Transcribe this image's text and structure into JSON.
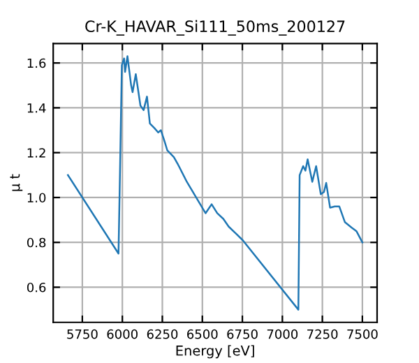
{
  "chart_data": {
    "type": "line",
    "title": "Cr-K_HAVAR_Si111_50ms_200127",
    "xlabel": "Energy [eV]",
    "ylabel": "μ t",
    "series": [
      {
        "color": "#1f77b4",
        "x": [
          5660,
          5976,
          5985,
          5997,
          6011,
          6017,
          6032,
          6055,
          6064,
          6084,
          6113,
          6133,
          6154,
          6172,
          6200,
          6224,
          6241,
          6264,
          6281,
          6322,
          6346,
          6403,
          6520,
          6558,
          6593,
          6631,
          6665,
          6709,
          6752,
          7100,
          7108,
          7130,
          7144,
          7158,
          7187,
          7211,
          7240,
          7260,
          7274,
          7298,
          7327,
          7356,
          7391,
          7434,
          7463,
          7500
        ],
        "values": [
          1.1,
          0.75,
          1.1,
          1.59,
          1.62,
          1.56,
          1.63,
          1.5,
          1.47,
          1.55,
          1.41,
          1.39,
          1.45,
          1.33,
          1.31,
          1.29,
          1.3,
          1.25,
          1.21,
          1.18,
          1.15,
          1.07,
          0.93,
          0.97,
          0.93,
          0.905,
          0.87,
          0.84,
          0.81,
          0.5,
          1.1,
          1.14,
          1.12,
          1.17,
          1.07,
          1.14,
          1.015,
          1.025,
          1.065,
          0.955,
          0.96,
          0.96,
          0.89,
          0.865,
          0.85,
          0.8
        ]
      }
    ],
    "xlim": [
      5568,
      7592
    ],
    "xticks": [
      5750,
      6000,
      6250,
      6500,
      6750,
      7000,
      7250,
      7500
    ],
    "ylim": [
      0.4435,
      1.6865
    ],
    "yticks": [
      0.6,
      0.8,
      {
        "value": 1.0,
        "label": "1.0"
      },
      1.2,
      1.4,
      1.6
    ],
    "grid": true,
    "legend": false,
    "marker": "none",
    "line_style": "solid"
  }
}
